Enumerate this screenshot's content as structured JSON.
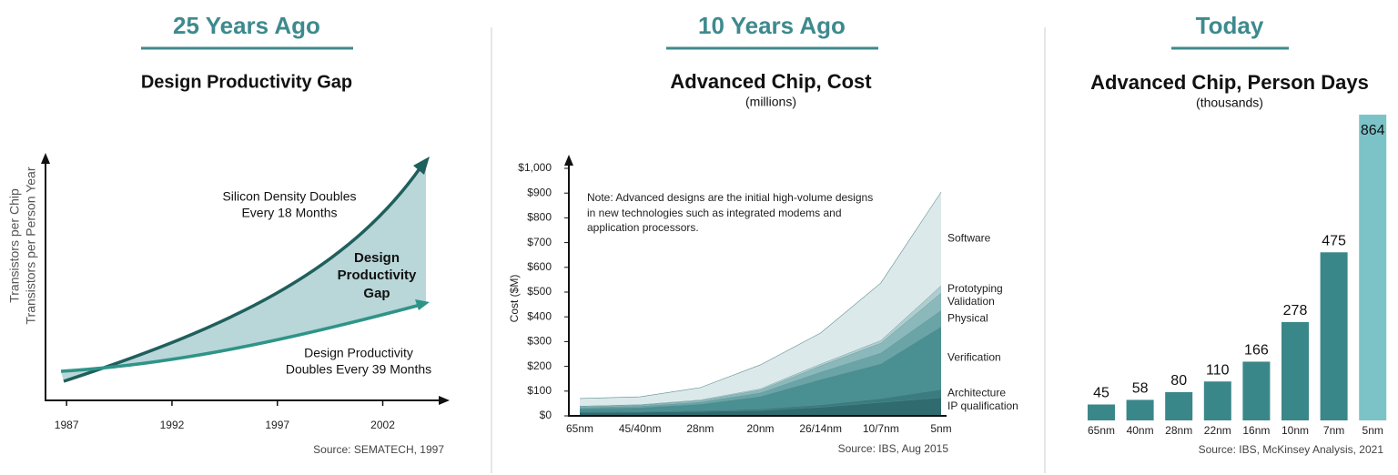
{
  "chart_data": [
    {
      "type": "line",
      "header": "25 Years Ago",
      "title": "Design Productivity Gap",
      "y_label": [
        "Transistors per Chip",
        "Transistors per Person Year"
      ],
      "xlim": [
        1986,
        2005
      ],
      "xticks": [
        1987,
        1992,
        1997,
        2002
      ],
      "annotations": [
        [
          "Silicon Density Doubles",
          "Every 18 Months"
        ],
        [
          "Design",
          "Productivity",
          "Gap"
        ],
        [
          "Design Productivity",
          "Doubles Every 39 Months"
        ]
      ],
      "source": "Source: SEMATECH, 1997"
    },
    {
      "type": "area",
      "stacked": true,
      "header": "10 Years Ago",
      "title": "Advanced Chip, Cost",
      "subtitle": "(millions)",
      "y_label": "Cost ($M)",
      "note": [
        "Note: Advanced designs are the initial high-volume designs",
        "in new technologies such as integrated modems and",
        "application processors."
      ],
      "categories": [
        "65nm",
        "45/40nm",
        "28nm",
        "20nm",
        "26/14nm",
        "10/7nm",
        "5nm"
      ],
      "series": [
        {
          "name": "IP qualification",
          "color": "#2f6b6f",
          "values": [
            14,
            15,
            18,
            22,
            35,
            55,
            74
          ]
        },
        {
          "name": "Architecture",
          "color": "#3a7c80",
          "values": [
            3,
            3,
            4,
            6,
            10,
            15,
            33
          ]
        },
        {
          "name": "Verification",
          "color": "#4a8f92",
          "values": [
            12,
            15,
            25,
            50,
            102,
            140,
            253
          ]
        },
        {
          "name": "Physical",
          "color": "#6aa4a6",
          "values": [
            5,
            6,
            8,
            15,
            30,
            44,
            66
          ]
        },
        {
          "name": "Validation",
          "color": "#8bb9bb",
          "values": [
            4,
            5,
            7,
            12,
            25,
            40,
            70
          ]
        },
        {
          "name": "Prototyping",
          "color": "#aecdce",
          "values": [
            2,
            2,
            3,
            5,
            8,
            11,
            30
          ]
        },
        {
          "name": "Software",
          "color": "#dce9ea",
          "values": [
            30,
            31,
            49,
            96,
            125,
            232,
            378
          ]
        }
      ],
      "ylim": [
        0,
        1000
      ],
      "yticks": [
        {
          "value": 0,
          "label": "$0"
        },
        {
          "value": 100,
          "label": "$100"
        },
        {
          "value": 200,
          "label": "$200"
        },
        {
          "value": 300,
          "label": "$300"
        },
        {
          "value": 400,
          "label": "$400"
        },
        {
          "value": 500,
          "label": "$500"
        },
        {
          "value": 600,
          "label": "$600"
        },
        {
          "value": 700,
          "label": "$700"
        },
        {
          "value": 800,
          "label": "$800"
        },
        {
          "value": 900,
          "label": "$900"
        },
        {
          "value": 1000,
          "label": "$1,000"
        }
      ],
      "source": "Source: IBS, Aug 2015"
    },
    {
      "type": "bar",
      "header": "Today",
      "title": "Advanced Chip, Person Days",
      "subtitle": "(thousands)",
      "categories": [
        "65nm",
        "40nm",
        "28nm",
        "22nm",
        "16nm",
        "10nm",
        "7nm",
        "5nm"
      ],
      "values": [
        45,
        58,
        80,
        110,
        166,
        278,
        475,
        864
      ],
      "colors": [
        "#3a878a",
        "#3a878a",
        "#3a878a",
        "#3a878a",
        "#3a878a",
        "#3a878a",
        "#3a878a",
        "#7cc3c8"
      ],
      "source": "Source: IBS, McKinsey Analysis, 2021"
    }
  ]
}
